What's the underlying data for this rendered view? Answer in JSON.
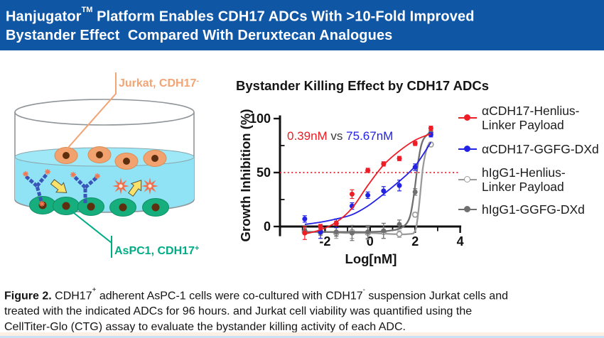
{
  "header": {
    "title_pre": "Hanjugator",
    "title_tm": "TM",
    "title_post": " Platform Enables CDH17 ADCs With >10-Fold Improved",
    "title_line2": "Bystander Effect  Compared With Deruxtecan Analogues",
    "bg_color": "#0F56A5",
    "text_color": "#FFFFFF"
  },
  "diagram": {
    "top_label": {
      "text": "Jurkat, CDH17",
      "sup": "-",
      "color": "#F2A474"
    },
    "bottom_label": {
      "text": "AsPC1, CDH17",
      "sup": "+",
      "color": "#00AC85"
    },
    "colors": {
      "liquid": "#90E2F5",
      "surface": "#9FE8F8",
      "dish_stroke": "#8F9598",
      "suspension_cell": "#F1A26E",
      "suspension_cell_stroke": "#DB8B53",
      "adherent_cell": "#17AE7E",
      "adherent_cell_stroke": "#0F9066",
      "nucleus": "#5E2F0F",
      "antibody": "#3A55B8",
      "arrow_fill": "#FAE169",
      "arrow_stroke": "#55553a",
      "burst": "#F36F4C"
    }
  },
  "chart_data": {
    "type": "line-scatter",
    "title": "Bystander Killing Effect by CDH17 ADCs",
    "xlabel": "Log[nM]",
    "ylabel": "Growth Inhibition (%)",
    "xlim": [
      -4,
      4
    ],
    "ylim": [
      -10,
      103
    ],
    "grid": false,
    "x_ticks": {
      "major": [
        -2,
        0,
        2,
        4
      ],
      "minor": [
        -3,
        -1,
        1,
        3
      ]
    },
    "y_ticks": {
      "major": [
        0,
        50,
        100
      ],
      "minor": [
        25,
        75
      ]
    },
    "annotation": {
      "parts": [
        {
          "text": "0.39nM",
          "color": "#EE1C25"
        },
        {
          "text": " vs ",
          "color": "#3a3a3a"
        },
        {
          "text": "75.67nM",
          "color": "#2222E6"
        }
      ]
    },
    "reference_line": {
      "y": 50,
      "color": "#EE1C25",
      "style": "dotted"
    },
    "x": [
      -2.9,
      -2.2,
      -1.5,
      -0.8,
      -0.1,
      0.6,
      1.3,
      2.0,
      2.7
    ],
    "series": [
      {
        "name": "hIgG1-Henlius-Linker Payload",
        "legend": [
          "hIgG1-Henlius-",
          "Linker Payload"
        ],
        "color": "#9A9A9A",
        "marker": "open-circle",
        "values": [
          -5,
          -5,
          -6,
          -5,
          -6,
          -5,
          -7,
          11,
          76
        ],
        "err": [
          2,
          3,
          5,
          6,
          6,
          6,
          3,
          2,
          2
        ],
        "curve": [
          [
            -2.9,
            -5
          ],
          [
            -2,
            -5
          ],
          [
            -1,
            -6
          ],
          [
            0,
            -6
          ],
          [
            1,
            -7
          ],
          [
            1.7,
            -7
          ],
          [
            2.0,
            -4
          ],
          [
            2.15,
            15
          ],
          [
            2.35,
            55
          ],
          [
            2.55,
            74
          ],
          [
            2.7,
            76
          ]
        ]
      },
      {
        "name": "hIgG1-GGFG-DXd",
        "legend": [
          "hIgG1-GGFG-DXd"
        ],
        "color": "#6F6F6F",
        "marker": "circle",
        "values": [
          -4,
          -5,
          -5,
          -6,
          -5,
          -4,
          2,
          32,
          87
        ],
        "err": [
          2,
          3,
          4,
          7,
          6,
          7,
          4,
          3,
          2
        ],
        "curve": [
          [
            -2.9,
            -5
          ],
          [
            -2,
            -5
          ],
          [
            -1,
            -5
          ],
          [
            0,
            -5
          ],
          [
            0.8,
            -4
          ],
          [
            1.4,
            -1
          ],
          [
            1.75,
            8
          ],
          [
            1.95,
            30
          ],
          [
            2.15,
            62
          ],
          [
            2.35,
            80
          ],
          [
            2.7,
            88
          ]
        ]
      },
      {
        "name": "αCDH17-GGFG-DXd",
        "legend": [
          "αCDH17-GGFG-DXd"
        ],
        "color": "#2222E6",
        "marker": "circle",
        "values": [
          7,
          -5,
          3,
          19,
          29,
          33,
          38,
          55,
          85
        ],
        "err": [
          3,
          6,
          4,
          3,
          3,
          4,
          5,
          3,
          2
        ],
        "curve": [
          [
            -2.9,
            2
          ],
          [
            -2.2,
            4
          ],
          [
            -1.5,
            7
          ],
          [
            -0.8,
            11
          ],
          [
            -0.1,
            19
          ],
          [
            0.6,
            30
          ],
          [
            1.3,
            42
          ],
          [
            2.0,
            56
          ],
          [
            2.7,
            78
          ]
        ]
      },
      {
        "name": "αCDH17-Henlius-Linker Payload",
        "legend": [
          "αCDH17-Henlius-",
          "Linker Payload"
        ],
        "color": "#EE1C25",
        "marker": "circle",
        "values": [
          -6,
          0,
          3,
          30,
          52,
          58,
          63,
          77,
          91
        ],
        "err": [
          6,
          2,
          2,
          4,
          2,
          2,
          2,
          2,
          2
        ],
        "curve": [
          [
            -2.9,
            -7
          ],
          [
            -2.2,
            -3
          ],
          [
            -1.5,
            4
          ],
          [
            -0.8,
            17
          ],
          [
            -0.1,
            38
          ],
          [
            0.6,
            57
          ],
          [
            1.3,
            70
          ],
          [
            2.0,
            80
          ],
          [
            2.7,
            86
          ]
        ]
      }
    ],
    "legend_order": [
      3,
      2,
      0,
      1
    ],
    "legend_position": "right"
  },
  "caption": {
    "segments": [
      {
        "t": "Figure 2.",
        "b": 1
      },
      {
        "t": " CDH17"
      },
      {
        "t": "+",
        "sup": 1
      },
      {
        "t": " adherent AsPC-1 cells were co-cultured with CDH17"
      },
      {
        "t": "-",
        "sup": 1
      },
      {
        "t": " suspension Jurkat cells and",
        "br": 1
      },
      {
        "t": "treated with the indicated ADCs for 96 hours. and Jurkat cell viability was quantified using the",
        "br": 1
      },
      {
        "t": "CellTiter-Glo (CTG) assay to evaluate the bystander killing activity of each ADC."
      }
    ]
  },
  "footer": {
    "bg": "#FCEFE3",
    "line": "#CBE2F5"
  }
}
